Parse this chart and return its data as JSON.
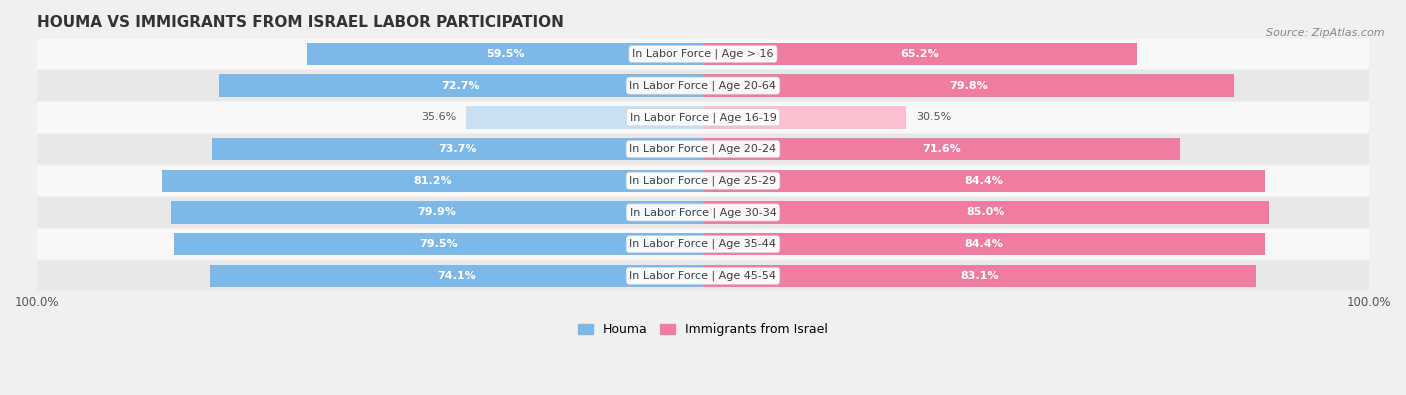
{
  "title": "HOUMA VS IMMIGRANTS FROM ISRAEL LABOR PARTICIPATION",
  "source": "Source: ZipAtlas.com",
  "categories": [
    "In Labor Force | Age > 16",
    "In Labor Force | Age 20-64",
    "In Labor Force | Age 16-19",
    "In Labor Force | Age 20-24",
    "In Labor Force | Age 25-29",
    "In Labor Force | Age 30-34",
    "In Labor Force | Age 35-44",
    "In Labor Force | Age 45-54"
  ],
  "houma_values": [
    59.5,
    72.7,
    35.6,
    73.7,
    81.2,
    79.9,
    79.5,
    74.1
  ],
  "israel_values": [
    65.2,
    79.8,
    30.5,
    71.6,
    84.4,
    85.0,
    84.4,
    83.1
  ],
  "houma_color": "#7db8e8",
  "houma_color_light": "#c9dff2",
  "israel_color": "#f07ca0",
  "israel_color_light": "#f9c0d0",
  "bar_height": 0.32,
  "background_color": "#f0f0f0",
  "row_bg_light": "#f8f8f8",
  "row_bg_dark": "#e8e8e8",
  "label_fontsize": 8.0,
  "title_fontsize": 11,
  "legend_fontsize": 9,
  "axis_label_fontsize": 8.5,
  "max_value": 100.0,
  "x_range": 100.0
}
